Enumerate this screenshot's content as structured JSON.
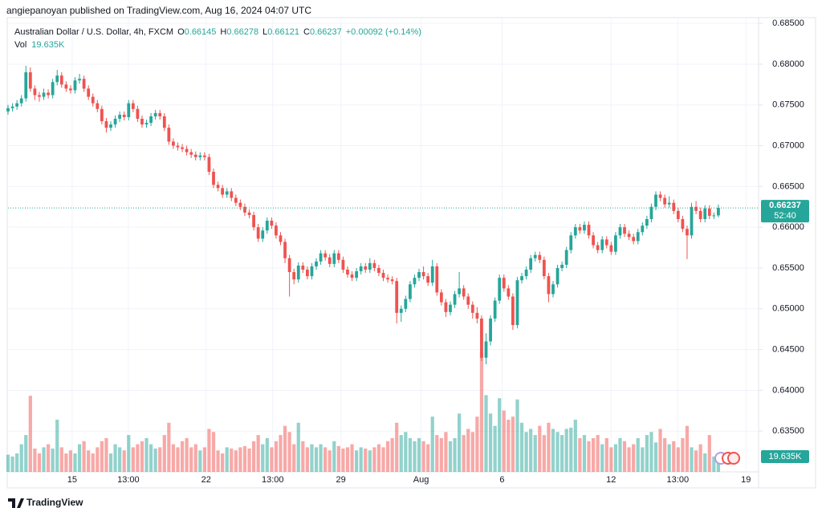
{
  "header": {
    "byline": "angiepanoyan published on TradingView.com, Aug 16, 2024 04:07 UTC"
  },
  "chart_data": {
    "type": "candlestick",
    "title": "Australian Dollar / U.S. Dollar, 4h, FXCM",
    "ohlc_labels": [
      "O",
      "H",
      "L",
      "C"
    ],
    "change": "+0.00092 (+0.14%)",
    "volume_title": "Vol",
    "volume_label": "19.635K",
    "countdown": "52:40",
    "up_color": "#26a69a",
    "down_color": "#ef5350",
    "grid": true,
    "xlim": [
      0,
      168
    ],
    "xticks": [
      {
        "value": 14.36,
        "label": "15"
      },
      {
        "value": 26.93,
        "label": "13:00"
      },
      {
        "value": 44.34,
        "label": "22"
      },
      {
        "value": 59.25,
        "label": "13:00"
      },
      {
        "value": 74.51,
        "label": "29"
      },
      {
        "value": 92.46,
        "label": "Aug"
      },
      {
        "value": 110.59,
        "label": "6"
      },
      {
        "value": 134.99,
        "label": "12"
      },
      {
        "value": 149.91,
        "label": "13:00"
      },
      {
        "value": 165.17,
        "label": "19"
      }
    ],
    "ylim": [
      0.63,
      0.6857
    ],
    "yticks": [
      {
        "value": 0.685,
        "label": "0.68500"
      },
      {
        "value": 0.68,
        "label": "0.68000"
      },
      {
        "value": 0.675,
        "label": "0.67500"
      },
      {
        "value": 0.67,
        "label": "0.67000"
      },
      {
        "value": 0.665,
        "label": "0.66500"
      },
      {
        "value": 0.66,
        "label": "0.66000"
      },
      {
        "value": 0.655,
        "label": "0.65500"
      },
      {
        "value": 0.65,
        "label": "0.65000"
      },
      {
        "value": 0.645,
        "label": "0.64500"
      },
      {
        "value": 0.64,
        "label": "0.64000"
      },
      {
        "value": 0.635,
        "label": "0.63500"
      }
    ],
    "volume_ylim": [
      0,
      740000
    ],
    "open": [
      0.6742,
      0.6746,
      0.6748,
      0.6752,
      0.6758,
      0.679,
      0.677,
      0.6762,
      0.676,
      0.6765,
      0.6762,
      0.6778,
      0.6786,
      0.6775,
      0.677,
      0.6768,
      0.678,
      0.6782,
      0.677,
      0.676,
      0.6752,
      0.6745,
      0.673,
      0.6722,
      0.6726,
      0.6733,
      0.6738,
      0.6735,
      0.6752,
      0.6745,
      0.6733,
      0.6726,
      0.6728,
      0.6736,
      0.674,
      0.6736,
      0.6722,
      0.6705,
      0.67,
      0.6698,
      0.6696,
      0.6692,
      0.6689,
      0.6686,
      0.6688,
      0.6686,
      0.6668,
      0.6652,
      0.6648,
      0.664,
      0.6644,
      0.6636,
      0.663,
      0.6625,
      0.6618,
      0.6615,
      0.66,
      0.6586,
      0.6596,
      0.6608,
      0.6602,
      0.659,
      0.6582,
      0.6562,
      0.6545,
      0.6536,
      0.6553,
      0.6548,
      0.654,
      0.6552,
      0.6558,
      0.6568,
      0.6563,
      0.6555,
      0.6568,
      0.656,
      0.6548,
      0.6542,
      0.6538,
      0.6546,
      0.6552,
      0.6548,
      0.6556,
      0.655,
      0.6544,
      0.6538,
      0.6536,
      0.6534,
      0.6495,
      0.65,
      0.6512,
      0.653,
      0.6538,
      0.6545,
      0.654,
      0.6532,
      0.6552,
      0.652,
      0.6508,
      0.6496,
      0.6505,
      0.6518,
      0.6525,
      0.6515,
      0.6505,
      0.6495,
      0.6488,
      0.644,
      0.646,
      0.6488,
      0.651,
      0.6538,
      0.6525,
      0.6515,
      0.648,
      0.6535,
      0.654,
      0.6548,
      0.6562,
      0.6566,
      0.656,
      0.654,
      0.6518,
      0.653,
      0.655,
      0.6554,
      0.6572,
      0.659,
      0.66,
      0.6596,
      0.6603,
      0.659,
      0.6578,
      0.6572,
      0.6585,
      0.6578,
      0.657,
      0.659,
      0.66,
      0.6592,
      0.6588,
      0.6583,
      0.6594,
      0.6602,
      0.661,
      0.6625,
      0.664,
      0.6636,
      0.6628,
      0.663,
      0.662,
      0.661,
      0.6598,
      0.659,
      0.6625,
      0.662,
      0.661,
      0.6623,
      0.6614,
      0.66145
    ],
    "high": [
      0.675,
      0.6752,
      0.6756,
      0.6762,
      0.6798,
      0.6796,
      0.6774,
      0.6766,
      0.677,
      0.6769,
      0.6782,
      0.6793,
      0.679,
      0.6779,
      0.6774,
      0.6784,
      0.6788,
      0.6786,
      0.6774,
      0.6764,
      0.6756,
      0.6749,
      0.6734,
      0.673,
      0.6737,
      0.6742,
      0.6742,
      0.6756,
      0.6756,
      0.6749,
      0.6737,
      0.6732,
      0.674,
      0.6744,
      0.6744,
      0.674,
      0.6726,
      0.6709,
      0.6704,
      0.6702,
      0.67,
      0.6696,
      0.6693,
      0.6692,
      0.6692,
      0.669,
      0.6672,
      0.6656,
      0.6652,
      0.6648,
      0.6648,
      0.664,
      0.6634,
      0.6629,
      0.6622,
      0.6619,
      0.6604,
      0.66,
      0.6612,
      0.6612,
      0.6606,
      0.6594,
      0.6586,
      0.6566,
      0.6549,
      0.6557,
      0.6557,
      0.6552,
      0.6556,
      0.6562,
      0.6572,
      0.6572,
      0.6567,
      0.6572,
      0.6572,
      0.6564,
      0.6552,
      0.6546,
      0.655,
      0.6556,
      0.6556,
      0.6562,
      0.656,
      0.6554,
      0.6548,
      0.6542,
      0.654,
      0.6538,
      0.6504,
      0.6516,
      0.6534,
      0.6542,
      0.6549,
      0.6552,
      0.6544,
      0.656,
      0.6556,
      0.6524,
      0.6512,
      0.6509,
      0.6522,
      0.6545,
      0.6529,
      0.6519,
      0.6509,
      0.6502,
      0.6492,
      0.647,
      0.6492,
      0.6514,
      0.6542,
      0.6542,
      0.6529,
      0.6519,
      0.6539,
      0.6544,
      0.6552,
      0.6566,
      0.657,
      0.657,
      0.6564,
      0.6544,
      0.6534,
      0.6554,
      0.6558,
      0.6576,
      0.6594,
      0.6604,
      0.6604,
      0.6607,
      0.6607,
      0.6594,
      0.6582,
      0.6589,
      0.6589,
      0.6582,
      0.6594,
      0.6604,
      0.6604,
      0.6596,
      0.6592,
      0.6598,
      0.6606,
      0.6614,
      0.6629,
      0.6644,
      0.6644,
      0.664,
      0.6638,
      0.6634,
      0.6624,
      0.6614,
      0.6602,
      0.663,
      0.6632,
      0.6624,
      0.6627,
      0.6627,
      0.6618,
      0.66278
    ],
    "low": [
      0.6738,
      0.6742,
      0.6744,
      0.6748,
      0.6754,
      0.6766,
      0.6756,
      0.6754,
      0.6756,
      0.6758,
      0.6758,
      0.6774,
      0.6771,
      0.6766,
      0.6764,
      0.6764,
      0.6776,
      0.6766,
      0.6756,
      0.6748,
      0.6741,
      0.6726,
      0.6716,
      0.6718,
      0.6722,
      0.6729,
      0.6731,
      0.6731,
      0.6741,
      0.6729,
      0.6722,
      0.6722,
      0.6724,
      0.6732,
      0.6732,
      0.6718,
      0.6701,
      0.6696,
      0.6694,
      0.6692,
      0.6688,
      0.6685,
      0.6682,
      0.6682,
      0.6682,
      0.6664,
      0.6648,
      0.6644,
      0.6636,
      0.6636,
      0.6632,
      0.6626,
      0.6621,
      0.6614,
      0.6611,
      0.6596,
      0.6582,
      0.6582,
      0.6592,
      0.6598,
      0.6586,
      0.6578,
      0.6556,
      0.6515,
      0.653,
      0.6532,
      0.6544,
      0.6536,
      0.6536,
      0.6548,
      0.6554,
      0.6559,
      0.6551,
      0.6551,
      0.6556,
      0.6544,
      0.6538,
      0.6534,
      0.6534,
      0.6542,
      0.6544,
      0.6544,
      0.6546,
      0.654,
      0.6534,
      0.6532,
      0.653,
      0.6482,
      0.6484,
      0.6496,
      0.6508,
      0.6526,
      0.6534,
      0.6536,
      0.6528,
      0.6528,
      0.6516,
      0.6504,
      0.649,
      0.6492,
      0.6501,
      0.6514,
      0.6511,
      0.65,
      0.6488,
      0.6482,
      0.6436,
      0.6432,
      0.6455,
      0.6484,
      0.6506,
      0.6521,
      0.6511,
      0.6474,
      0.6476,
      0.6531,
      0.6536,
      0.6544,
      0.6558,
      0.6556,
      0.6536,
      0.6508,
      0.6514,
      0.6526,
      0.6546,
      0.655,
      0.6568,
      0.6586,
      0.6592,
      0.6592,
      0.6586,
      0.6574,
      0.6568,
      0.6568,
      0.6574,
      0.6566,
      0.6566,
      0.6586,
      0.6588,
      0.6584,
      0.6579,
      0.6579,
      0.659,
      0.6598,
      0.6606,
      0.6621,
      0.6632,
      0.6624,
      0.6624,
      0.6616,
      0.6606,
      0.6594,
      0.6561,
      0.6586,
      0.6616,
      0.6606,
      0.6606,
      0.661,
      0.661,
      0.66121
    ],
    "close": [
      0.6746,
      0.6748,
      0.6752,
      0.6758,
      0.679,
      0.677,
      0.6762,
      0.676,
      0.6765,
      0.6762,
      0.6778,
      0.6786,
      0.6775,
      0.677,
      0.6768,
      0.678,
      0.6782,
      0.677,
      0.676,
      0.6752,
      0.6745,
      0.673,
      0.6722,
      0.6726,
      0.6733,
      0.6738,
      0.6735,
      0.6752,
      0.6745,
      0.6733,
      0.6726,
      0.6728,
      0.6736,
      0.674,
      0.6736,
      0.6722,
      0.6705,
      0.67,
      0.6698,
      0.6696,
      0.6692,
      0.6689,
      0.6686,
      0.6688,
      0.6686,
      0.6668,
      0.6652,
      0.6648,
      0.664,
      0.6644,
      0.6636,
      0.663,
      0.6625,
      0.6618,
      0.6615,
      0.66,
      0.6586,
      0.6596,
      0.6608,
      0.6602,
      0.659,
      0.6582,
      0.6562,
      0.6545,
      0.6536,
      0.6553,
      0.6548,
      0.654,
      0.6552,
      0.6558,
      0.6568,
      0.6563,
      0.6555,
      0.6568,
      0.656,
      0.6548,
      0.6542,
      0.6538,
      0.6546,
      0.6552,
      0.6548,
      0.6556,
      0.655,
      0.6544,
      0.6538,
      0.6536,
      0.6534,
      0.6495,
      0.65,
      0.6512,
      0.653,
      0.6538,
      0.6545,
      0.654,
      0.6532,
      0.6552,
      0.652,
      0.6508,
      0.6496,
      0.6505,
      0.6518,
      0.6525,
      0.6515,
      0.6505,
      0.6495,
      0.6488,
      0.644,
      0.646,
      0.6488,
      0.651,
      0.6538,
      0.6525,
      0.6515,
      0.648,
      0.6535,
      0.654,
      0.6548,
      0.6562,
      0.6566,
      0.656,
      0.654,
      0.6518,
      0.653,
      0.655,
      0.6554,
      0.6572,
      0.659,
      0.66,
      0.6596,
      0.6603,
      0.659,
      0.6578,
      0.6572,
      0.6585,
      0.6578,
      0.657,
      0.659,
      0.66,
      0.6592,
      0.6588,
      0.6583,
      0.6594,
      0.6602,
      0.661,
      0.6625,
      0.664,
      0.6636,
      0.6628,
      0.663,
      0.662,
      0.661,
      0.6598,
      0.659,
      0.6625,
      0.662,
      0.661,
      0.6623,
      0.6614,
      0.66145,
      0.66237
    ],
    "volume": [
      28000,
      25000,
      30000,
      45000,
      60000,
      124000,
      38000,
      30000,
      40000,
      45000,
      38000,
      85000,
      40000,
      30000,
      35000,
      30000,
      45000,
      50000,
      35000,
      30000,
      40000,
      50000,
      55000,
      30000,
      45000,
      40000,
      35000,
      60000,
      40000,
      45000,
      50000,
      55000,
      45000,
      38000,
      40000,
      60000,
      80000,
      45000,
      40000,
      50000,
      55000,
      40000,
      45000,
      35000,
      40000,
      70000,
      65000,
      35000,
      30000,
      40000,
      38000,
      35000,
      40000,
      42000,
      38000,
      50000,
      60000,
      45000,
      55000,
      40000,
      50000,
      60000,
      75000,
      65000,
      45000,
      80000,
      50000,
      40000,
      45000,
      40000,
      45000,
      40000,
      35000,
      50000,
      42000,
      38000,
      40000,
      45000,
      35000,
      40000,
      38000,
      35000,
      40000,
      45000,
      40000,
      50000,
      55000,
      80000,
      60000,
      65000,
      55000,
      50000,
      55000,
      50000,
      45000,
      90000,
      60000,
      55000,
      65000,
      50000,
      55000,
      95000,
      60000,
      70000,
      65000,
      90000,
      194000,
      125000,
      95000,
      75000,
      120000,
      100000,
      85000,
      90000,
      118000,
      80000,
      65000,
      70000,
      60000,
      75000,
      60000,
      80000,
      70000,
      65000,
      60000,
      70000,
      72000,
      85000,
      55000,
      60000,
      50000,
      55000,
      60000,
      45000,
      55000,
      40000,
      45000,
      55000,
      50000,
      40000,
      45000,
      55000,
      40000,
      60000,
      65000,
      48000,
      70000,
      55000,
      45000,
      50000,
      40000,
      55000,
      75000,
      40000,
      35000,
      45000,
      30000,
      60000,
      25000,
      19635
    ]
  },
  "footer": {
    "brand": "TradingView"
  }
}
